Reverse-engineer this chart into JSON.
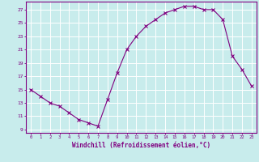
{
  "x": [
    0,
    1,
    2,
    3,
    4,
    5,
    6,
    7,
    8,
    9,
    10,
    11,
    12,
    13,
    14,
    15,
    16,
    17,
    18,
    19,
    20,
    21,
    22,
    23
  ],
  "y": [
    15,
    14,
    13,
    12.5,
    11.5,
    10.5,
    10,
    9.5,
    13.5,
    17.5,
    21,
    23,
    24.5,
    25.5,
    26.5,
    27,
    27.5,
    27.5,
    27,
    27,
    25.5,
    20,
    18,
    15.5
  ],
  "line_color": "#800080",
  "marker": "x",
  "bg_color": "#c8ecec",
  "grid_color": "#ffffff",
  "xlabel": "Windchill (Refroidissement éolien,°C)",
  "xlabel_color": "#800080",
  "tick_color": "#800080",
  "ylabel_ticks": [
    9,
    11,
    13,
    15,
    17,
    19,
    21,
    23,
    25,
    27
  ],
  "ylim": [
    8.5,
    28.2
  ],
  "xlim": [
    -0.5,
    23.5
  ],
  "title": ""
}
